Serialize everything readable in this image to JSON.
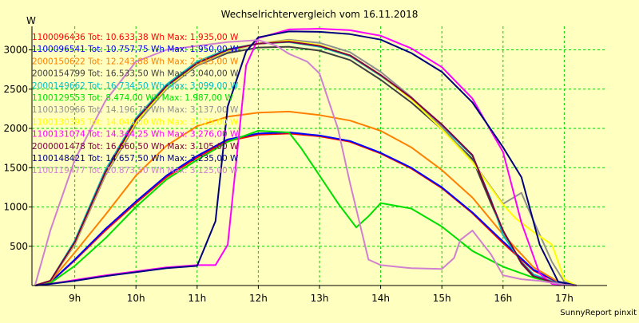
{
  "chart_data": {
    "type": "line",
    "title": "Wechselrichtervergleich vom 16.11.2018",
    "ylabel": "W",
    "xlabel": "",
    "footer": "SunnyReport pinxit",
    "xlim": [
      8.3,
      17.7
    ],
    "ylim": [
      0,
      3300
    ],
    "x_ticks": [
      {
        "value": 9,
        "label": "9h"
      },
      {
        "value": 10,
        "label": "10h"
      },
      {
        "value": 11,
        "label": "11h"
      },
      {
        "value": 12,
        "label": "12h"
      },
      {
        "value": 13,
        "label": "13h"
      },
      {
        "value": 14,
        "label": "14h"
      },
      {
        "value": 15,
        "label": "15h"
      },
      {
        "value": 16,
        "label": "16h"
      },
      {
        "value": 17,
        "label": "17h"
      }
    ],
    "y_ticks": [
      500,
      1000,
      1500,
      2000,
      2500,
      3000
    ],
    "grid": true,
    "legend_position": "top-left",
    "colors": {
      "background": "#ffffc0",
      "plot_background": "#ffffc0",
      "grid": "#00d000",
      "axis": "#000000"
    },
    "series": [
      {
        "name": "1100096436 Tot: 10.633,38 Wh Max: 1.935,00 W",
        "color": "#ff0000",
        "x": [
          8.35,
          8.6,
          9.0,
          9.5,
          10.0,
          10.5,
          11.0,
          11.5,
          12.0,
          12.5,
          13.0,
          13.5,
          14.0,
          14.5,
          15.0,
          15.5,
          16.0,
          16.5,
          16.9,
          17.2
        ],
        "y": [
          0,
          40,
          320,
          700,
          1050,
          1380,
          1630,
          1840,
          1920,
          1935,
          1900,
          1830,
          1680,
          1490,
          1240,
          920,
          540,
          190,
          40,
          0
        ]
      },
      {
        "name": "1100096541 Tot: 10.757,75 Wh Max: 1.950,00 W",
        "color": "#0000ff",
        "x": [
          8.35,
          8.6,
          9.0,
          9.5,
          10.0,
          10.5,
          11.0,
          11.5,
          12.0,
          12.5,
          13.0,
          13.5,
          14.0,
          14.5,
          15.0,
          15.5,
          16.0,
          16.5,
          16.9,
          17.2
        ],
        "y": [
          0,
          40,
          330,
          720,
          1070,
          1400,
          1650,
          1860,
          1935,
          1950,
          1910,
          1840,
          1690,
          1500,
          1250,
          930,
          560,
          200,
          45,
          0
        ]
      },
      {
        "name": "2000150622 Tot: 12.243,88 Wh Max: 2.215,00 W",
        "color": "#ff8000",
        "x": [
          8.35,
          8.6,
          9.0,
          9.5,
          10.0,
          10.5,
          11.0,
          11.5,
          12.0,
          12.5,
          13.0,
          13.5,
          14.0,
          14.5,
          15.0,
          15.5,
          16.0,
          16.5,
          16.9,
          17.2
        ],
        "y": [
          0,
          50,
          420,
          900,
          1400,
          1780,
          2030,
          2150,
          2200,
          2215,
          2170,
          2100,
          1970,
          1760,
          1470,
          1120,
          650,
          230,
          50,
          0
        ]
      },
      {
        "name": "2000154799 Tot: 16.533,50 Wh Max: 3.040,00 W",
        "color": "#404040",
        "x": [
          8.35,
          8.6,
          9.0,
          9.5,
          10.0,
          10.5,
          11.0,
          11.5,
          12.0,
          12.5,
          13.0,
          13.5,
          14.0,
          14.5,
          15.0,
          15.5,
          15.8,
          16.0,
          16.3,
          16.5,
          16.9,
          17.2
        ],
        "y": [
          0,
          60,
          560,
          1450,
          2100,
          2520,
          2800,
          2960,
          3030,
          3040,
          2990,
          2870,
          2620,
          2330,
          1990,
          1610,
          1050,
          700,
          280,
          110,
          20,
          0
        ]
      },
      {
        "name": "2000149662 Tot: 16.734,50 Wh Max: 3.099,00 W",
        "color": "#00c0c0",
        "x": [
          8.35,
          8.6,
          9.0,
          9.5,
          10.0,
          10.5,
          11.0,
          11.5,
          12.0,
          12.5,
          13.0,
          13.5,
          14.0,
          14.5,
          15.0,
          15.5,
          15.8,
          16.0,
          16.3,
          16.5,
          16.9,
          17.2
        ],
        "y": [
          0,
          60,
          570,
          1470,
          2130,
          2560,
          2850,
          3010,
          3080,
          3099,
          3040,
          2920,
          2670,
          2380,
          2030,
          1650,
          1100,
          640,
          300,
          140,
          25,
          0
        ]
      },
      {
        "name": "1100129553 Tot: 8.474,00 Wh Max: 1.987,00 W",
        "color": "#00e000",
        "x": [
          8.35,
          8.6,
          9.0,
          9.5,
          10.0,
          10.5,
          11.0,
          11.5,
          12.0,
          12.5,
          12.7,
          13.0,
          13.3,
          13.6,
          13.8,
          14.0,
          14.5,
          15.0,
          15.5,
          16.0,
          16.5,
          16.9,
          17.2
        ],
        "y": [
          0,
          30,
          250,
          600,
          1000,
          1350,
          1600,
          1830,
          1970,
          1950,
          1750,
          1400,
          1050,
          740,
          880,
          1050,
          980,
          750,
          440,
          240,
          100,
          20,
          0
        ]
      },
      {
        "name": "1100130966 Tot: 14.196,75 Wh Max: 3.137,00 W",
        "color": "#909090",
        "x": [
          8.35,
          8.6,
          9.0,
          9.5,
          10.0,
          10.5,
          11.0,
          11.5,
          12.0,
          12.5,
          13.0,
          13.5,
          14.0,
          14.5,
          15.0,
          15.5,
          16.0,
          16.3,
          16.5,
          16.8,
          17.0,
          17.2
        ],
        "y": [
          0,
          60,
          520,
          1400,
          2050,
          2500,
          2800,
          2980,
          3080,
          3130,
          3090,
          2970,
          2720,
          2400,
          2020,
          1580,
          1040,
          1180,
          820,
          300,
          50,
          0
        ]
      },
      {
        "name": "1100130395 Tot: 14.046,00 Wh Max: 3.125,00 W",
        "color": "#ffff00",
        "x": [
          8.35,
          8.6,
          9.0,
          9.5,
          10.0,
          10.5,
          11.0,
          11.5,
          12.0,
          12.5,
          13.0,
          13.5,
          14.0,
          14.5,
          15.0,
          15.5,
          16.0,
          16.2,
          16.5,
          16.8,
          17.0,
          17.2
        ],
        "y": [
          0,
          60,
          540,
          1430,
          2080,
          2520,
          2820,
          2990,
          3080,
          3120,
          3060,
          2930,
          2680,
          2370,
          1990,
          1570,
          1030,
          860,
          680,
          520,
          80,
          0
        ]
      },
      {
        "name": "1100131074 Tot: 14.344,25 Wh Max: 3.276,00 W",
        "color": "#ff00ff",
        "x": [
          8.35,
          8.6,
          9.0,
          9.5,
          10.0,
          10.5,
          11.0,
          11.3,
          11.5,
          11.8,
          12.0,
          12.5,
          13.0,
          13.5,
          14.0,
          14.5,
          15.0,
          15.5,
          16.0,
          16.3,
          16.6,
          16.8,
          17.2
        ],
        "y": [
          0,
          20,
          70,
          130,
          180,
          230,
          260,
          260,
          520,
          2800,
          3150,
          3260,
          3270,
          3250,
          3180,
          3020,
          2780,
          2380,
          1700,
          800,
          150,
          20,
          0
        ]
      },
      {
        "name": "2000001478 Tot: 16.660,50 Wh Max: 3.105,00 W",
        "color": "#800040",
        "x": [
          8.35,
          8.6,
          9.0,
          9.5,
          10.0,
          10.5,
          11.0,
          11.5,
          12.0,
          12.5,
          13.0,
          13.5,
          14.0,
          14.5,
          15.0,
          15.5,
          15.8,
          16.0,
          16.3,
          16.5,
          16.9,
          17.2
        ],
        "y": [
          0,
          60,
          550,
          1440,
          2110,
          2540,
          2830,
          3000,
          3080,
          3105,
          3050,
          2930,
          2680,
          2390,
          2050,
          1660,
          1080,
          700,
          290,
          120,
          20,
          0
        ]
      },
      {
        "name": "1100148421 Tot: 14.657,50 Wh Max: 3.235,00 W",
        "color": "#000080",
        "x": [
          8.35,
          8.6,
          9.0,
          9.5,
          10.0,
          10.5,
          11.0,
          11.3,
          11.5,
          11.8,
          12.0,
          12.5,
          13.0,
          13.5,
          14.0,
          14.5,
          15.0,
          15.5,
          16.0,
          16.3,
          16.6,
          16.9,
          17.2
        ],
        "y": [
          0,
          20,
          60,
          120,
          170,
          220,
          250,
          820,
          2280,
          2980,
          3160,
          3235,
          3230,
          3200,
          3130,
          2960,
          2720,
          2330,
          1760,
          1380,
          520,
          50,
          0
        ]
      },
      {
        "name": "1100119477 Tot: 10.873,50 Wh Max: 3.125,00 W",
        "color": "#d080d0",
        "x": [
          8.35,
          8.6,
          9.0,
          9.5,
          10.0,
          10.5,
          11.0,
          11.5,
          12.0,
          12.3,
          12.5,
          12.8,
          13.0,
          13.3,
          13.5,
          13.8,
          14.0,
          14.5,
          15.0,
          15.2,
          15.3,
          15.5,
          15.8,
          16.0,
          16.3,
          16.6,
          17.0,
          17.2
        ],
        "y": [
          0,
          700,
          1600,
          2350,
          2850,
          3000,
          3050,
          3100,
          3125,
          3050,
          2950,
          2850,
          2700,
          2000,
          1300,
          330,
          260,
          220,
          210,
          350,
          580,
          700,
          400,
          130,
          80,
          60,
          10,
          0
        ]
      }
    ]
  }
}
